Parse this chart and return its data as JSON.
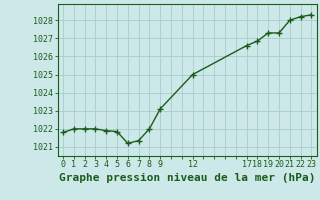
{
  "x": [
    0,
    1,
    2,
    3,
    4,
    5,
    6,
    7,
    8,
    9,
    12,
    17,
    18,
    19,
    20,
    21,
    22,
    23
  ],
  "y": [
    1021.8,
    1022.0,
    1022.0,
    1022.0,
    1021.9,
    1021.85,
    1021.2,
    1021.35,
    1022.0,
    1023.1,
    1025.0,
    1026.6,
    1026.85,
    1027.3,
    1027.3,
    1028.0,
    1028.2,
    1028.3
  ],
  "line_color": "#1a5c1a",
  "marker": "+",
  "bg_color": "#cce8e8",
  "grid_color": "#aacccc",
  "title": "Graphe pression niveau de la mer (hPa)",
  "title_color": "#1a5c1a",
  "title_fontsize": 8,
  "tick_color": "#1a5c1a",
  "yticks": [
    1021,
    1022,
    1023,
    1024,
    1025,
    1026,
    1027,
    1028
  ],
  "ylim": [
    1020.5,
    1028.9
  ],
  "xlim": [
    -0.5,
    23.5
  ]
}
